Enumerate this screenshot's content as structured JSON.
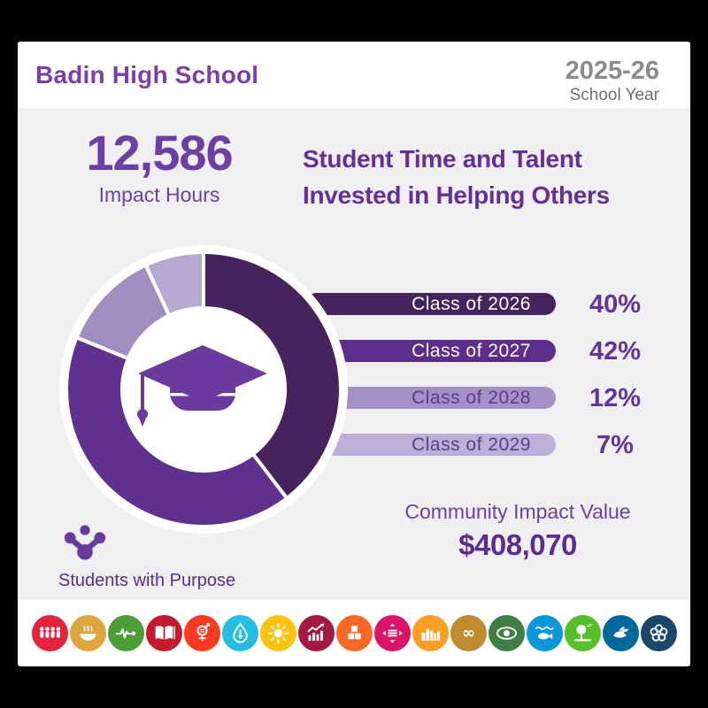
{
  "header": {
    "school_name": "Badin High School",
    "year": "2025-26",
    "year_label": "School Year"
  },
  "impact": {
    "hours_value": "12,586",
    "hours_label": "Impact Hours"
  },
  "title": {
    "line1": "Student Time and Talent",
    "line2": "Invested in Helping Others"
  },
  "chart_data": {
    "type": "pie",
    "donut": true,
    "title": "Student Time and Talent Invested in Helping Others",
    "categories": [
      "Class of 2026",
      "Class of 2027",
      "Class of 2028",
      "Class of 2029"
    ],
    "values": [
      40,
      42,
      12,
      7
    ],
    "unit": "%",
    "colors": [
      "#45245d",
      "#613190",
      "#a28dc1",
      "#b5a9d1"
    ],
    "center_icon": "graduation-cap",
    "legend_position": "right"
  },
  "class_bars": [
    {
      "label": "Class of 2026",
      "pct": "40%",
      "bar_color": "#45245d",
      "label_color": "#ffffff"
    },
    {
      "label": "Class of 2027",
      "pct": "42%",
      "bar_color": "#5e2d8b",
      "label_color": "#ffffff"
    },
    {
      "label": "Class of 2028",
      "pct": "12%",
      "bar_color": "#a390c4",
      "label_color": "#5d3a8e"
    },
    {
      "label": "Class of 2029",
      "pct": "7%",
      "bar_color": "#bcafd8",
      "label_color": "#5d3a8e"
    }
  ],
  "community": {
    "label": "Community Impact Value",
    "value": "$408,070"
  },
  "footer_note": {
    "label": "Students with Purpose"
  },
  "sdg_goals": [
    {
      "name": "no-poverty",
      "glyph": "people",
      "color": "#e5243b"
    },
    {
      "name": "zero-hunger",
      "glyph": "bowl",
      "color": "#dda63a"
    },
    {
      "name": "good-health",
      "glyph": "ecg",
      "color": "#4c9f38"
    },
    {
      "name": "quality-education",
      "glyph": "book",
      "color": "#c5192d"
    },
    {
      "name": "gender-equality",
      "glyph": "gender",
      "color": "#ff3a21"
    },
    {
      "name": "clean-water",
      "glyph": "water",
      "color": "#26bde2"
    },
    {
      "name": "clean-energy",
      "glyph": "sun",
      "color": "#fcc30b"
    },
    {
      "name": "economic-growth",
      "glyph": "growth",
      "color": "#a21942"
    },
    {
      "name": "industry-innovation",
      "glyph": "cubes",
      "color": "#fd6925"
    },
    {
      "name": "reduced-inequalities",
      "glyph": "equal-arrows",
      "color": "#dd1367"
    },
    {
      "name": "sustainable-cities",
      "glyph": "city",
      "color": "#fd9d24"
    },
    {
      "name": "responsible-consumption",
      "glyph": "infinity",
      "color": "#bf8b2e"
    },
    {
      "name": "climate-action",
      "glyph": "eye",
      "color": "#3f7e44"
    },
    {
      "name": "life-below-water",
      "glyph": "fish",
      "color": "#0a97d9"
    },
    {
      "name": "life-on-land",
      "glyph": "tree",
      "color": "#56c02b"
    },
    {
      "name": "peace-justice",
      "glyph": "dove",
      "color": "#00689d"
    },
    {
      "name": "partnerships",
      "glyph": "wheel",
      "color": "#19486a"
    }
  ],
  "colors": {
    "background": "#000000",
    "card": "#ffffff",
    "panel": "#f0eff1",
    "accent_purple": "#6b3fa5",
    "deep_purple": "#5c2d91",
    "header_purple": "#7b3fad",
    "pct_purple": "#6233a0"
  }
}
